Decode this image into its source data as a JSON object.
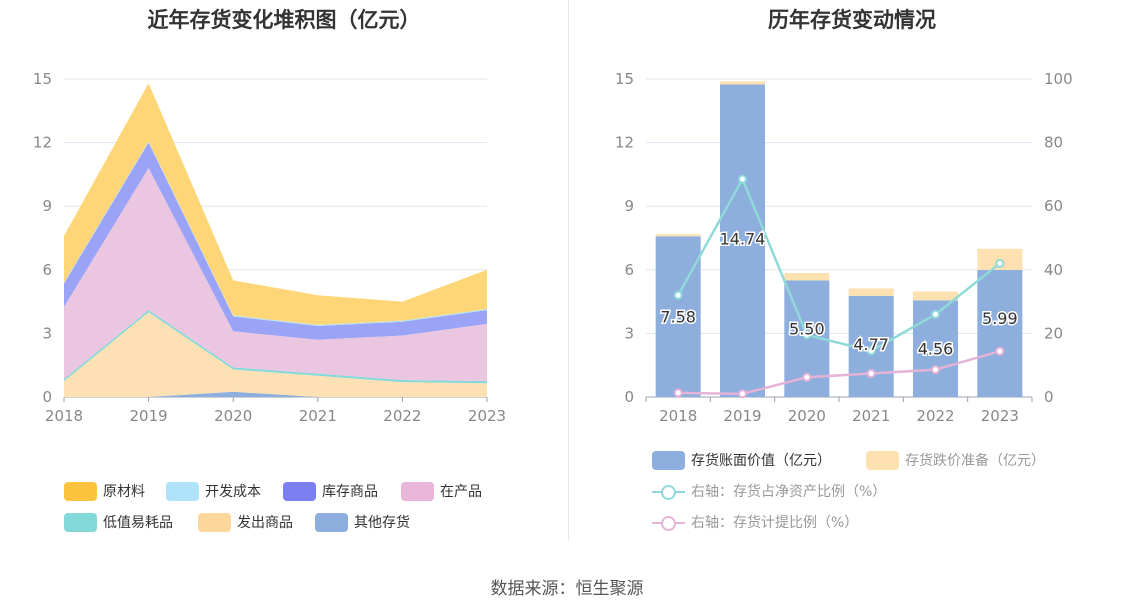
{
  "source_text": "数据来源：恒生聚源",
  "chart_data": [
    {
      "type": "area",
      "stacked": true,
      "title": "近年存货变化堆积图（亿元）",
      "x": [
        "2018",
        "2019",
        "2020",
        "2021",
        "2022",
        "2023"
      ],
      "ylim": [
        0,
        15
      ],
      "yticks": [
        "0",
        "3",
        "6",
        "9",
        "12",
        "15"
      ],
      "series": [
        {
          "name": "其他存货",
          "color": "#8eaedd",
          "values": [
            0.0,
            0.0,
            0.25,
            0.0,
            0.0,
            0.0
          ]
        },
        {
          "name": "发出商品",
          "color": "#fde1b4",
          "values": [
            0.75,
            4.0,
            1.05,
            1.0,
            0.7,
            0.65
          ]
        },
        {
          "name": "低值易耗品",
          "color": "#83d9d9",
          "values": [
            0.1,
            0.1,
            0.1,
            0.1,
            0.1,
            0.1
          ]
        },
        {
          "name": "在产品",
          "color": "#ebc6e1",
          "values": [
            3.4,
            6.7,
            1.7,
            1.6,
            2.1,
            2.7
          ]
        },
        {
          "name": "库存商品",
          "color": "#9aa3f5",
          "values": [
            1.1,
            1.2,
            0.7,
            0.65,
            0.65,
            0.65
          ]
        },
        {
          "name": "开发成本",
          "color": "#b0e2f7",
          "values": [
            0.05,
            0.05,
            0.05,
            0.05,
            0.05,
            0.05
          ]
        },
        {
          "name": "原材料",
          "color": "#fed678",
          "values": [
            2.2,
            2.75,
            1.65,
            1.4,
            0.9,
            1.85
          ]
        }
      ],
      "legend": [
        {
          "name": "原材料",
          "color": "#fdc33f"
        },
        {
          "name": "开发成本",
          "color": "#aee3f9"
        },
        {
          "name": "库存商品",
          "color": "#7b7ff2"
        },
        {
          "name": "在产品",
          "color": "#e9b6da"
        },
        {
          "name": "低值易耗品",
          "color": "#83d9d9"
        },
        {
          "name": "发出商品",
          "color": "#fdd69b"
        },
        {
          "name": "其他存货",
          "color": "#8eaedd"
        }
      ],
      "legend_position": "bottom"
    },
    {
      "type": "bar",
      "title": "历年存货变动情况",
      "categories": [
        "2018",
        "2019",
        "2020",
        "2021",
        "2022",
        "2023"
      ],
      "ylim": [
        0,
        15
      ],
      "yticks": [
        "0",
        "3",
        "6",
        "9",
        "12",
        "15"
      ],
      "y2lim": [
        0,
        100
      ],
      "y2ticks": [
        "0",
        "20",
        "40",
        "60",
        "80",
        "100"
      ],
      "bars": [
        {
          "name": "存货账面价值（亿元）",
          "color": "#8eaedd",
          "values": [
            7.58,
            14.74,
            5.5,
            4.77,
            4.56,
            5.99
          ],
          "labels": [
            "7.58",
            "14.74",
            "5.50",
            "4.77",
            "4.56",
            "5.99"
          ]
        },
        {
          "name": "存货跌价准备（亿元）",
          "color": "#fde1b0",
          "values": [
            0.1,
            0.15,
            0.35,
            0.35,
            0.42,
            1.0
          ]
        }
      ],
      "lines": [
        {
          "name": "右轴：存货占净资产比例（%）",
          "color": "#8fdad8",
          "values": [
            32,
            68.5,
            19.5,
            14.5,
            26,
            42
          ]
        },
        {
          "name": "右轴：存货计提比例（%）",
          "color": "#e5b2d8",
          "values": [
            1.3,
            1.0,
            6.2,
            7.4,
            8.6,
            14.4
          ]
        }
      ],
      "legend_position": "bottom"
    }
  ]
}
